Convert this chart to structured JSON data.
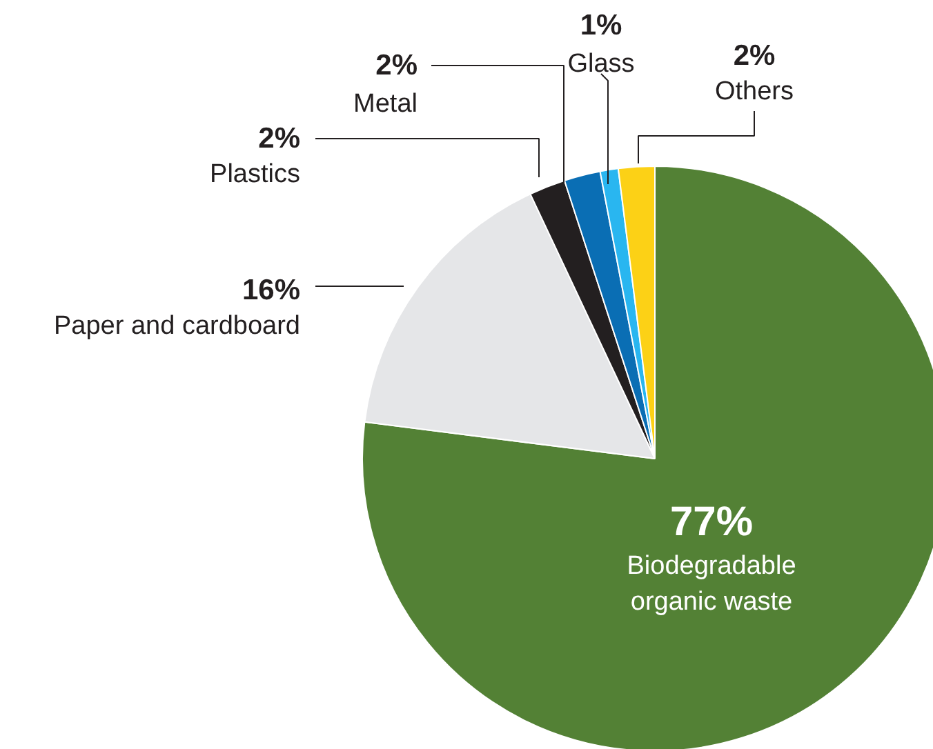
{
  "chart_data": {
    "type": "pie",
    "categories": [
      "Biodegradable organic waste",
      "Paper and cardboard",
      "Plastics",
      "Metal",
      "Glass",
      "Others"
    ],
    "values": [
      77,
      16,
      2,
      2,
      1,
      2
    ],
    "value_labels": [
      "77%",
      "16%",
      "2%",
      "2%",
      "1%",
      "2%"
    ],
    "colors": [
      "#538135",
      "#e5e6e8",
      "#231f20",
      "#0a6eb4",
      "#29b6f0",
      "#fcd116"
    ]
  }
}
